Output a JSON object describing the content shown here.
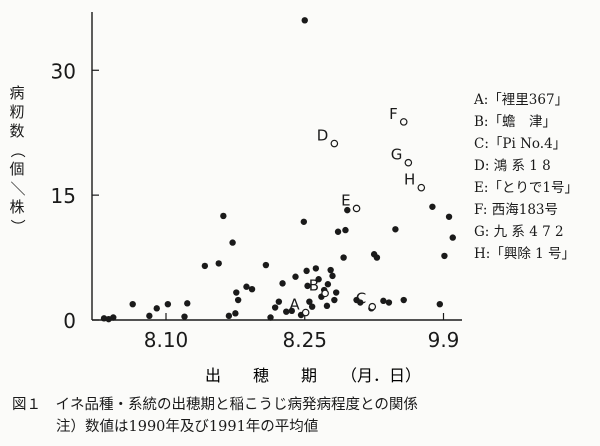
{
  "chart_data": {
    "type": "scatter",
    "xlabel": "出　　穂　　期　　（月．日）",
    "ylabel": "病籾数（個／株）",
    "xticks": [
      {
        "label": "8.10",
        "value": 10
      },
      {
        "label": "8.25",
        "value": 25
      },
      {
        "label": "9.9",
        "value": 40
      }
    ],
    "yticks": [
      0,
      15,
      30
    ],
    "xlim": [
      2,
      42
    ],
    "ylim": [
      0,
      37
    ],
    "points": [
      [
        3.3,
        0.2
      ],
      [
        3.8,
        0.1
      ],
      [
        4.3,
        0.3
      ],
      [
        6.4,
        1.9
      ],
      [
        8.2,
        0.5
      ],
      [
        9.0,
        1.4
      ],
      [
        10.2,
        1.9
      ],
      [
        12.0,
        0.4
      ],
      [
        12.3,
        2.0
      ],
      [
        14.2,
        6.5
      ],
      [
        15.7,
        6.8
      ],
      [
        16.2,
        12.5
      ],
      [
        16.8,
        0.5
      ],
      [
        17.2,
        9.3
      ],
      [
        17.5,
        0.8
      ],
      [
        17.6,
        3.3
      ],
      [
        17.8,
        2.4
      ],
      [
        18.7,
        4.0
      ],
      [
        19.3,
        3.7
      ],
      [
        20.8,
        6.6
      ],
      [
        21.3,
        0.3
      ],
      [
        21.8,
        1.5
      ],
      [
        22.2,
        2.2
      ],
      [
        22.6,
        4.4
      ],
      [
        23.0,
        1.0
      ],
      [
        23.6,
        1.1
      ],
      [
        24.0,
        5.2
      ],
      [
        24.6,
        0.6
      ],
      [
        25.0,
        36.0
      ],
      [
        24.9,
        11.8
      ],
      [
        25.2,
        5.9
      ],
      [
        25.3,
        4.1
      ],
      [
        25.5,
        2.2
      ],
      [
        25.8,
        1.6
      ],
      [
        26.2,
        6.2
      ],
      [
        26.5,
        4.9
      ],
      [
        26.8,
        2.8
      ],
      [
        27.1,
        3.6
      ],
      [
        27.4,
        1.7
      ],
      [
        27.5,
        4.3
      ],
      [
        27.8,
        6.0
      ],
      [
        28.0,
        5.3
      ],
      [
        28.2,
        2.4
      ],
      [
        28.4,
        3.3
      ],
      [
        28.6,
        10.6
      ],
      [
        29.2,
        7.5
      ],
      [
        29.4,
        10.8
      ],
      [
        29.6,
        13.2
      ],
      [
        30.6,
        2.4
      ],
      [
        31.0,
        2.1
      ],
      [
        32.2,
        1.4
      ],
      [
        32.5,
        7.9
      ],
      [
        32.8,
        7.5
      ],
      [
        33.5,
        2.3
      ],
      [
        34.1,
        2.1
      ],
      [
        34.8,
        10.9
      ],
      [
        35.7,
        2.4
      ],
      [
        38.8,
        13.6
      ],
      [
        39.6,
        1.9
      ],
      [
        40.1,
        7.7
      ],
      [
        40.6,
        12.4
      ],
      [
        41.0,
        9.9
      ]
    ],
    "labeled_points": [
      {
        "label": "A",
        "x": 25.1,
        "y": 0.9
      },
      {
        "label": "B",
        "x": 27.2,
        "y": 3.2
      },
      {
        "label": "C",
        "x": 32.3,
        "y": 1.6
      },
      {
        "label": "D",
        "x": 28.2,
        "y": 21.2
      },
      {
        "label": "E",
        "x": 30.6,
        "y": 13.4
      },
      {
        "label": "F",
        "x": 35.7,
        "y": 23.8
      },
      {
        "label": "G",
        "x": 36.2,
        "y": 18.9
      },
      {
        "label": "H",
        "x": 37.6,
        "y": 15.9
      }
    ],
    "grid": false
  },
  "legend": [
    "A:「裡里367」",
    "B:「蟾　津」",
    "C:「Pi No.4」",
    "D: 鴻 系 1 8",
    "E:「とりで1号」",
    "F: 西海183号",
    "G: 九 系 4 7 2",
    "H:「興除 1 号」"
  ],
  "caption": {
    "line1": "図１　イネ品種・系統の出穂期と稲こうじ病発病程度との関係",
    "line2": "注）数値は1990年及び1991年の平均値"
  },
  "colors": {
    "ink": "#1a1a1a",
    "paper": "#fbfbf9"
  }
}
